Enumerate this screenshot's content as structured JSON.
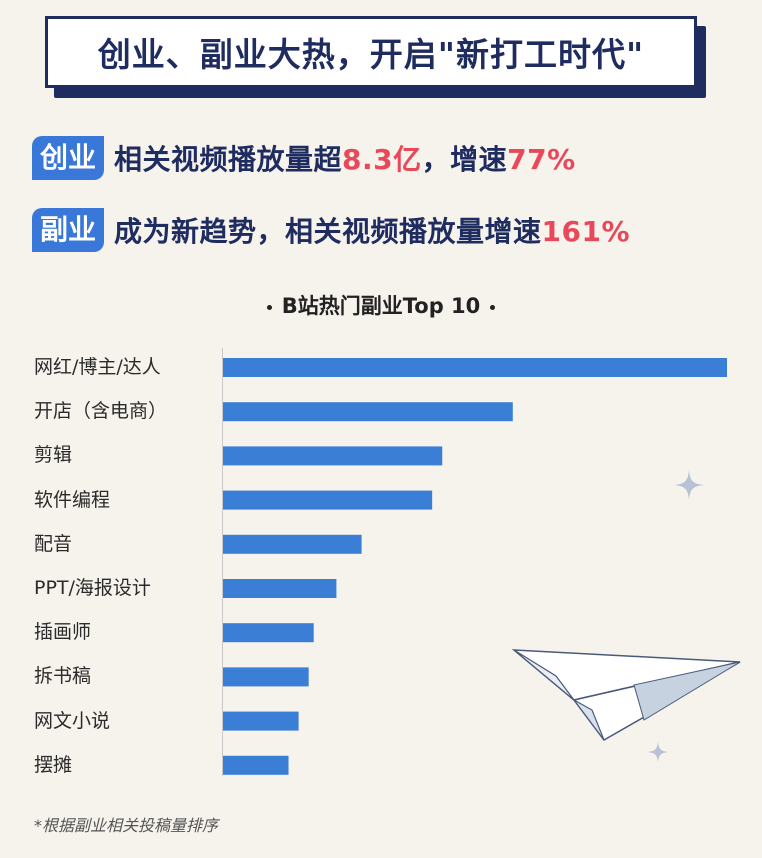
{
  "banner": {
    "title": "创业、副业大热，开启\"新打工时代\""
  },
  "stats": [
    {
      "tag": "创业",
      "text": "相关视频播放量超",
      "highlight1": "8.3亿",
      "mid": "，增速",
      "highlight2": "77%"
    },
    {
      "tag": "副业",
      "text": "成为新趋势，相关视频播放量增速",
      "highlight1": "161%"
    }
  ],
  "chart_title": "B站热门副业Top 10",
  "footnote": "*根据副业相关投稿量排序",
  "colors": {
    "bar": "#3a7fd5",
    "accent_red": "#e9485a",
    "navy": "#1f2c60",
    "tag_blue": "#3978d8"
  },
  "chart_data": {
    "type": "bar",
    "orientation": "horizontal",
    "title": "B站热门副业Top 10",
    "categories": [
      "网红/博主/达人",
      "开店（含电商）",
      "剪辑",
      "软件编程",
      "配音",
      "PPT/海报设计",
      "插画师",
      "拆书稿",
      "网文小说",
      "摆摊"
    ],
    "values": [
      100,
      57.5,
      43.5,
      41.5,
      27.5,
      22.5,
      18,
      17,
      15,
      13
    ],
    "xlim": [
      0,
      100
    ],
    "grid": false,
    "legend": "none"
  }
}
